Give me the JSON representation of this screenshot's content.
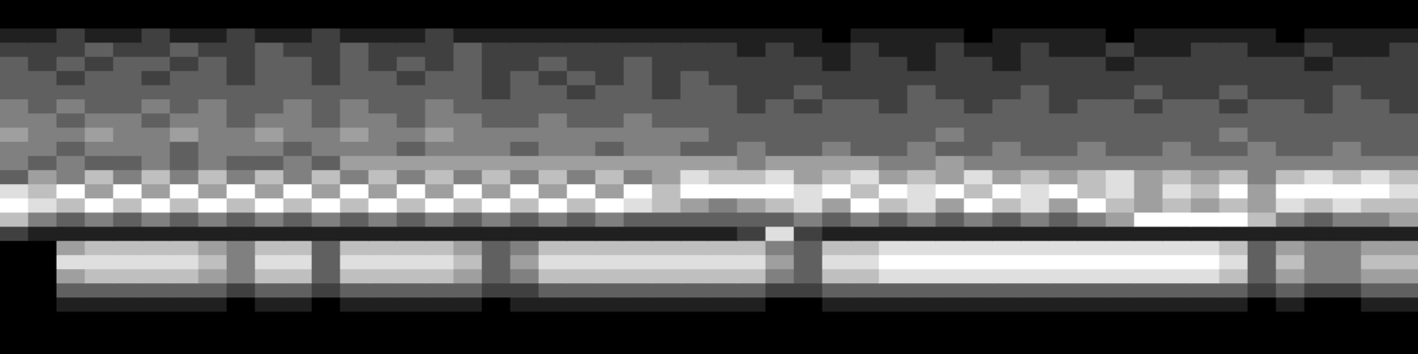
{
  "chart_data": {
    "type": "heatmap",
    "tick_labels": false,
    "grid": false,
    "cells": [
      [
        0,
        0,
        0,
        0,
        0,
        0,
        0,
        0,
        0,
        0,
        0,
        0,
        0,
        0,
        0,
        0,
        0,
        0,
        0,
        0,
        0,
        0,
        0,
        0,
        0,
        0,
        0,
        0,
        0,
        0,
        0,
        0,
        0,
        0,
        0,
        0,
        0,
        0,
        0,
        0,
        0,
        0,
        0,
        0,
        0,
        0,
        0,
        0,
        0,
        0
      ],
      [
        0,
        0,
        0,
        0,
        0,
        0,
        0,
        0,
        0,
        0,
        0,
        0,
        0,
        0,
        0,
        0,
        0,
        0,
        0,
        0,
        0,
        0,
        0,
        0,
        0,
        0,
        0,
        0,
        0,
        0,
        0,
        0,
        0,
        0,
        0,
        0,
        0,
        0,
        0,
        0,
        0,
        0,
        0,
        0,
        0,
        0,
        0,
        0,
        0,
        0
      ],
      [
        1,
        1,
        2,
        1,
        1,
        2,
        1,
        1,
        2,
        1,
        1,
        2,
        1,
        1,
        1,
        2,
        1,
        1,
        1,
        1,
        1,
        1,
        1,
        1,
        1,
        1,
        1,
        1,
        1,
        0,
        1,
        1,
        1,
        1,
        0,
        1,
        1,
        1,
        1,
        0,
        1,
        1,
        1,
        1,
        1,
        0,
        1,
        1,
        1,
        1
      ],
      [
        2,
        2,
        2,
        3,
        2,
        2,
        3,
        2,
        2,
        3,
        2,
        2,
        3,
        2,
        2,
        2,
        3,
        2,
        2,
        2,
        2,
        2,
        2,
        2,
        2,
        2,
        1,
        2,
        1,
        1,
        2,
        1,
        1,
        2,
        1,
        1,
        2,
        1,
        1,
        2,
        1,
        1,
        2,
        2,
        1,
        1,
        2,
        1,
        1,
        2
      ],
      [
        3,
        2,
        3,
        2,
        3,
        3,
        2,
        3,
        2,
        3,
        3,
        2,
        3,
        2,
        3,
        2,
        3,
        2,
        2,
        3,
        2,
        2,
        3,
        2,
        2,
        2,
        2,
        2,
        2,
        1,
        2,
        2,
        1,
        2,
        2,
        1,
        2,
        2,
        2,
        1,
        2,
        2,
        2,
        2,
        2,
        2,
        1,
        2,
        2,
        2
      ],
      [
        3,
        3,
        2,
        3,
        3,
        2,
        3,
        3,
        2,
        3,
        3,
        2,
        3,
        3,
        2,
        3,
        3,
        2,
        3,
        2,
        3,
        2,
        3,
        2,
        3,
        2,
        2,
        2,
        2,
        2,
        2,
        2,
        2,
        2,
        2,
        2,
        2,
        2,
        2,
        2,
        2,
        2,
        2,
        2,
        2,
        2,
        2,
        2,
        2,
        2
      ],
      [
        3,
        3,
        3,
        3,
        3,
        3,
        3,
        3,
        3,
        3,
        3,
        3,
        3,
        3,
        3,
        3,
        3,
        2,
        3,
        3,
        2,
        3,
        3,
        2,
        3,
        3,
        2,
        2,
        3,
        2,
        2,
        2,
        3,
        2,
        2,
        2,
        3,
        2,
        2,
        2,
        3,
        2,
        2,
        3,
        2,
        2,
        2,
        3,
        2,
        2
      ],
      [
        4,
        3,
        4,
        3,
        3,
        4,
        3,
        4,
        3,
        3,
        4,
        3,
        4,
        3,
        3,
        4,
        3,
        3,
        3,
        3,
        3,
        3,
        3,
        3,
        3,
        3,
        2,
        3,
        2,
        3,
        3,
        2,
        3,
        3,
        2,
        3,
        3,
        2,
        3,
        3,
        2,
        3,
        3,
        2,
        3,
        3,
        2,
        3,
        3,
        2
      ],
      [
        4,
        4,
        3,
        4,
        4,
        3,
        4,
        4,
        3,
        4,
        4,
        3,
        4,
        4,
        3,
        4,
        4,
        3,
        3,
        4,
        3,
        3,
        4,
        3,
        3,
        3,
        3,
        3,
        3,
        3,
        3,
        3,
        3,
        3,
        3,
        3,
        3,
        3,
        3,
        3,
        3,
        3,
        3,
        3,
        3,
        3,
        3,
        3,
        3,
        3
      ],
      [
        5,
        4,
        4,
        5,
        4,
        4,
        5,
        4,
        4,
        5,
        4,
        4,
        5,
        4,
        4,
        5,
        4,
        4,
        4,
        4,
        4,
        4,
        4,
        4,
        4,
        3,
        3,
        3,
        3,
        3,
        3,
        3,
        3,
        4,
        3,
        3,
        3,
        3,
        3,
        3,
        3,
        3,
        3,
        4,
        3,
        3,
        3,
        3,
        3,
        3
      ],
      [
        4,
        4,
        3,
        4,
        4,
        4,
        3,
        4,
        4,
        4,
        3,
        4,
        4,
        4,
        3,
        4,
        4,
        4,
        3,
        4,
        4,
        3,
        4,
        4,
        3,
        3,
        4,
        3,
        3,
        4,
        3,
        3,
        4,
        3,
        3,
        4,
        3,
        3,
        4,
        3,
        3,
        4,
        3,
        3,
        4,
        3,
        3,
        4,
        3,
        3
      ],
      [
        4,
        3,
        4,
        3,
        3,
        4,
        3,
        4,
        3,
        3,
        4,
        3,
        5,
        5,
        5,
        5,
        5,
        5,
        5,
        5,
        5,
        5,
        5,
        5,
        5,
        5,
        4,
        5,
        5,
        5,
        5,
        4,
        4,
        5,
        4,
        4,
        4,
        4,
        4,
        4,
        4,
        4,
        4,
        4,
        4,
        4,
        4,
        4,
        4,
        4
      ],
      [
        3,
        5,
        4,
        6,
        4,
        6,
        4,
        6,
        4,
        6,
        4,
        6,
        4,
        6,
        4,
        6,
        4,
        6,
        4,
        6,
        4,
        6,
        4,
        5,
        7,
        6,
        6,
        7,
        5,
        6,
        7,
        5,
        6,
        5,
        7,
        5,
        6,
        5,
        6,
        7,
        5,
        6,
        5,
        6,
        4,
        6,
        7,
        6,
        7,
        6
      ],
      [
        7,
        6,
        8,
        5,
        8,
        5,
        8,
        5,
        8,
        5,
        8,
        5,
        8,
        5,
        8,
        5,
        8,
        5,
        8,
        5,
        8,
        5,
        8,
        6,
        8,
        8,
        8,
        8,
        7,
        8,
        6,
        8,
        7,
        8,
        6,
        8,
        7,
        8,
        6,
        7,
        5,
        7,
        6,
        8,
        5,
        8,
        8,
        8,
        8,
        7
      ],
      [
        8,
        7,
        6,
        8,
        6,
        8,
        6,
        8,
        6,
        8,
        6,
        8,
        6,
        8,
        6,
        8,
        6,
        8,
        6,
        8,
        6,
        8,
        7,
        6,
        5,
        4,
        5,
        6,
        7,
        5,
        8,
        6,
        7,
        5,
        8,
        6,
        7,
        5,
        8,
        6,
        5,
        6,
        5,
        6,
        5,
        7,
        6,
        7,
        6,
        6
      ],
      [
        6,
        4,
        3,
        4,
        3,
        4,
        3,
        4,
        3,
        4,
        3,
        4,
        3,
        4,
        3,
        4,
        3,
        4,
        3,
        4,
        3,
        4,
        3,
        3,
        3,
        3,
        3,
        3,
        4,
        3,
        4,
        3,
        4,
        3,
        4,
        3,
        4,
        3,
        4,
        5,
        8,
        8,
        8,
        8,
        6,
        4,
        3,
        4,
        4,
        5
      ],
      [
        2,
        1,
        1,
        1,
        1,
        1,
        1,
        1,
        1,
        1,
        1,
        1,
        1,
        1,
        1,
        1,
        1,
        1,
        1,
        1,
        1,
        1,
        1,
        1,
        1,
        1,
        2,
        7,
        2,
        1,
        1,
        1,
        1,
        1,
        1,
        1,
        1,
        1,
        1,
        1,
        1,
        1,
        1,
        1,
        1,
        1,
        1,
        1,
        1,
        1
      ],
      [
        0,
        0,
        5,
        6,
        6,
        6,
        6,
        5,
        4,
        6,
        6,
        3,
        6,
        6,
        6,
        6,
        5,
        3,
        4,
        6,
        6,
        6,
        6,
        6,
        6,
        6,
        6,
        4,
        3,
        6,
        6,
        7,
        7,
        7,
        7,
        7,
        7,
        7,
        7,
        7,
        7,
        7,
        7,
        6,
        3,
        5,
        4,
        4,
        5,
        5
      ],
      [
        0,
        0,
        7,
        7,
        7,
        7,
        7,
        6,
        4,
        7,
        7,
        3,
        7,
        7,
        7,
        7,
        6,
        3,
        5,
        7,
        7,
        7,
        7,
        7,
        7,
        7,
        7,
        5,
        3,
        7,
        7,
        8,
        8,
        8,
        8,
        8,
        8,
        8,
        8,
        8,
        8,
        8,
        8,
        7,
        3,
        6,
        4,
        4,
        6,
        6
      ],
      [
        0,
        0,
        5,
        6,
        6,
        6,
        6,
        5,
        4,
        6,
        6,
        3,
        6,
        6,
        6,
        6,
        5,
        3,
        4,
        6,
        6,
        6,
        6,
        6,
        6,
        6,
        6,
        4,
        3,
        6,
        6,
        7,
        7,
        7,
        7,
        7,
        7,
        7,
        7,
        7,
        7,
        7,
        7,
        6,
        3,
        5,
        4,
        4,
        5,
        5
      ],
      [
        0,
        0,
        3,
        3,
        3,
        3,
        3,
        3,
        2,
        3,
        3,
        2,
        3,
        3,
        3,
        3,
        3,
        2,
        2,
        3,
        3,
        3,
        3,
        3,
        3,
        3,
        3,
        2,
        2,
        3,
        3,
        3,
        3,
        3,
        3,
        3,
        3,
        3,
        3,
        3,
        3,
        3,
        3,
        3,
        2,
        3,
        2,
        2,
        3,
        3
      ],
      [
        0,
        0,
        1,
        1,
        1,
        1,
        1,
        1,
        0,
        1,
        1,
        0,
        1,
        1,
        1,
        1,
        1,
        0,
        1,
        1,
        1,
        1,
        1,
        1,
        1,
        1,
        1,
        0,
        0,
        1,
        1,
        1,
        1,
        1,
        1,
        1,
        1,
        1,
        1,
        1,
        1,
        1,
        1,
        1,
        0,
        1,
        0,
        0,
        1,
        1
      ],
      [
        0,
        0,
        0,
        0,
        0,
        0,
        0,
        0,
        0,
        0,
        0,
        0,
        0,
        0,
        0,
        0,
        0,
        0,
        0,
        0,
        0,
        0,
        0,
        0,
        0,
        0,
        0,
        0,
        0,
        0,
        0,
        0,
        0,
        0,
        0,
        0,
        0,
        0,
        0,
        0,
        0,
        0,
        0,
        0,
        0,
        0,
        0,
        0,
        0,
        0
      ],
      [
        0,
        0,
        0,
        0,
        0,
        0,
        0,
        0,
        0,
        0,
        0,
        0,
        0,
        0,
        0,
        0,
        0,
        0,
        0,
        0,
        0,
        0,
        0,
        0,
        0,
        0,
        0,
        0,
        0,
        0,
        0,
        0,
        0,
        0,
        0,
        0,
        0,
        0,
        0,
        0,
        0,
        0,
        0,
        0,
        0,
        0,
        0,
        0,
        0,
        0
      ],
      [
        0,
        0,
        0,
        0,
        0,
        0,
        0,
        0,
        0,
        0,
        0,
        0,
        0,
        0,
        0,
        0,
        0,
        0,
        0,
        0,
        0,
        0,
        0,
        0,
        0,
        0,
        0,
        0,
        0,
        0,
        0,
        0,
        0,
        0,
        0,
        0,
        0,
        0,
        0,
        0,
        0,
        0,
        0,
        0,
        0,
        0,
        0,
        0,
        0,
        0
      ]
    ]
  }
}
